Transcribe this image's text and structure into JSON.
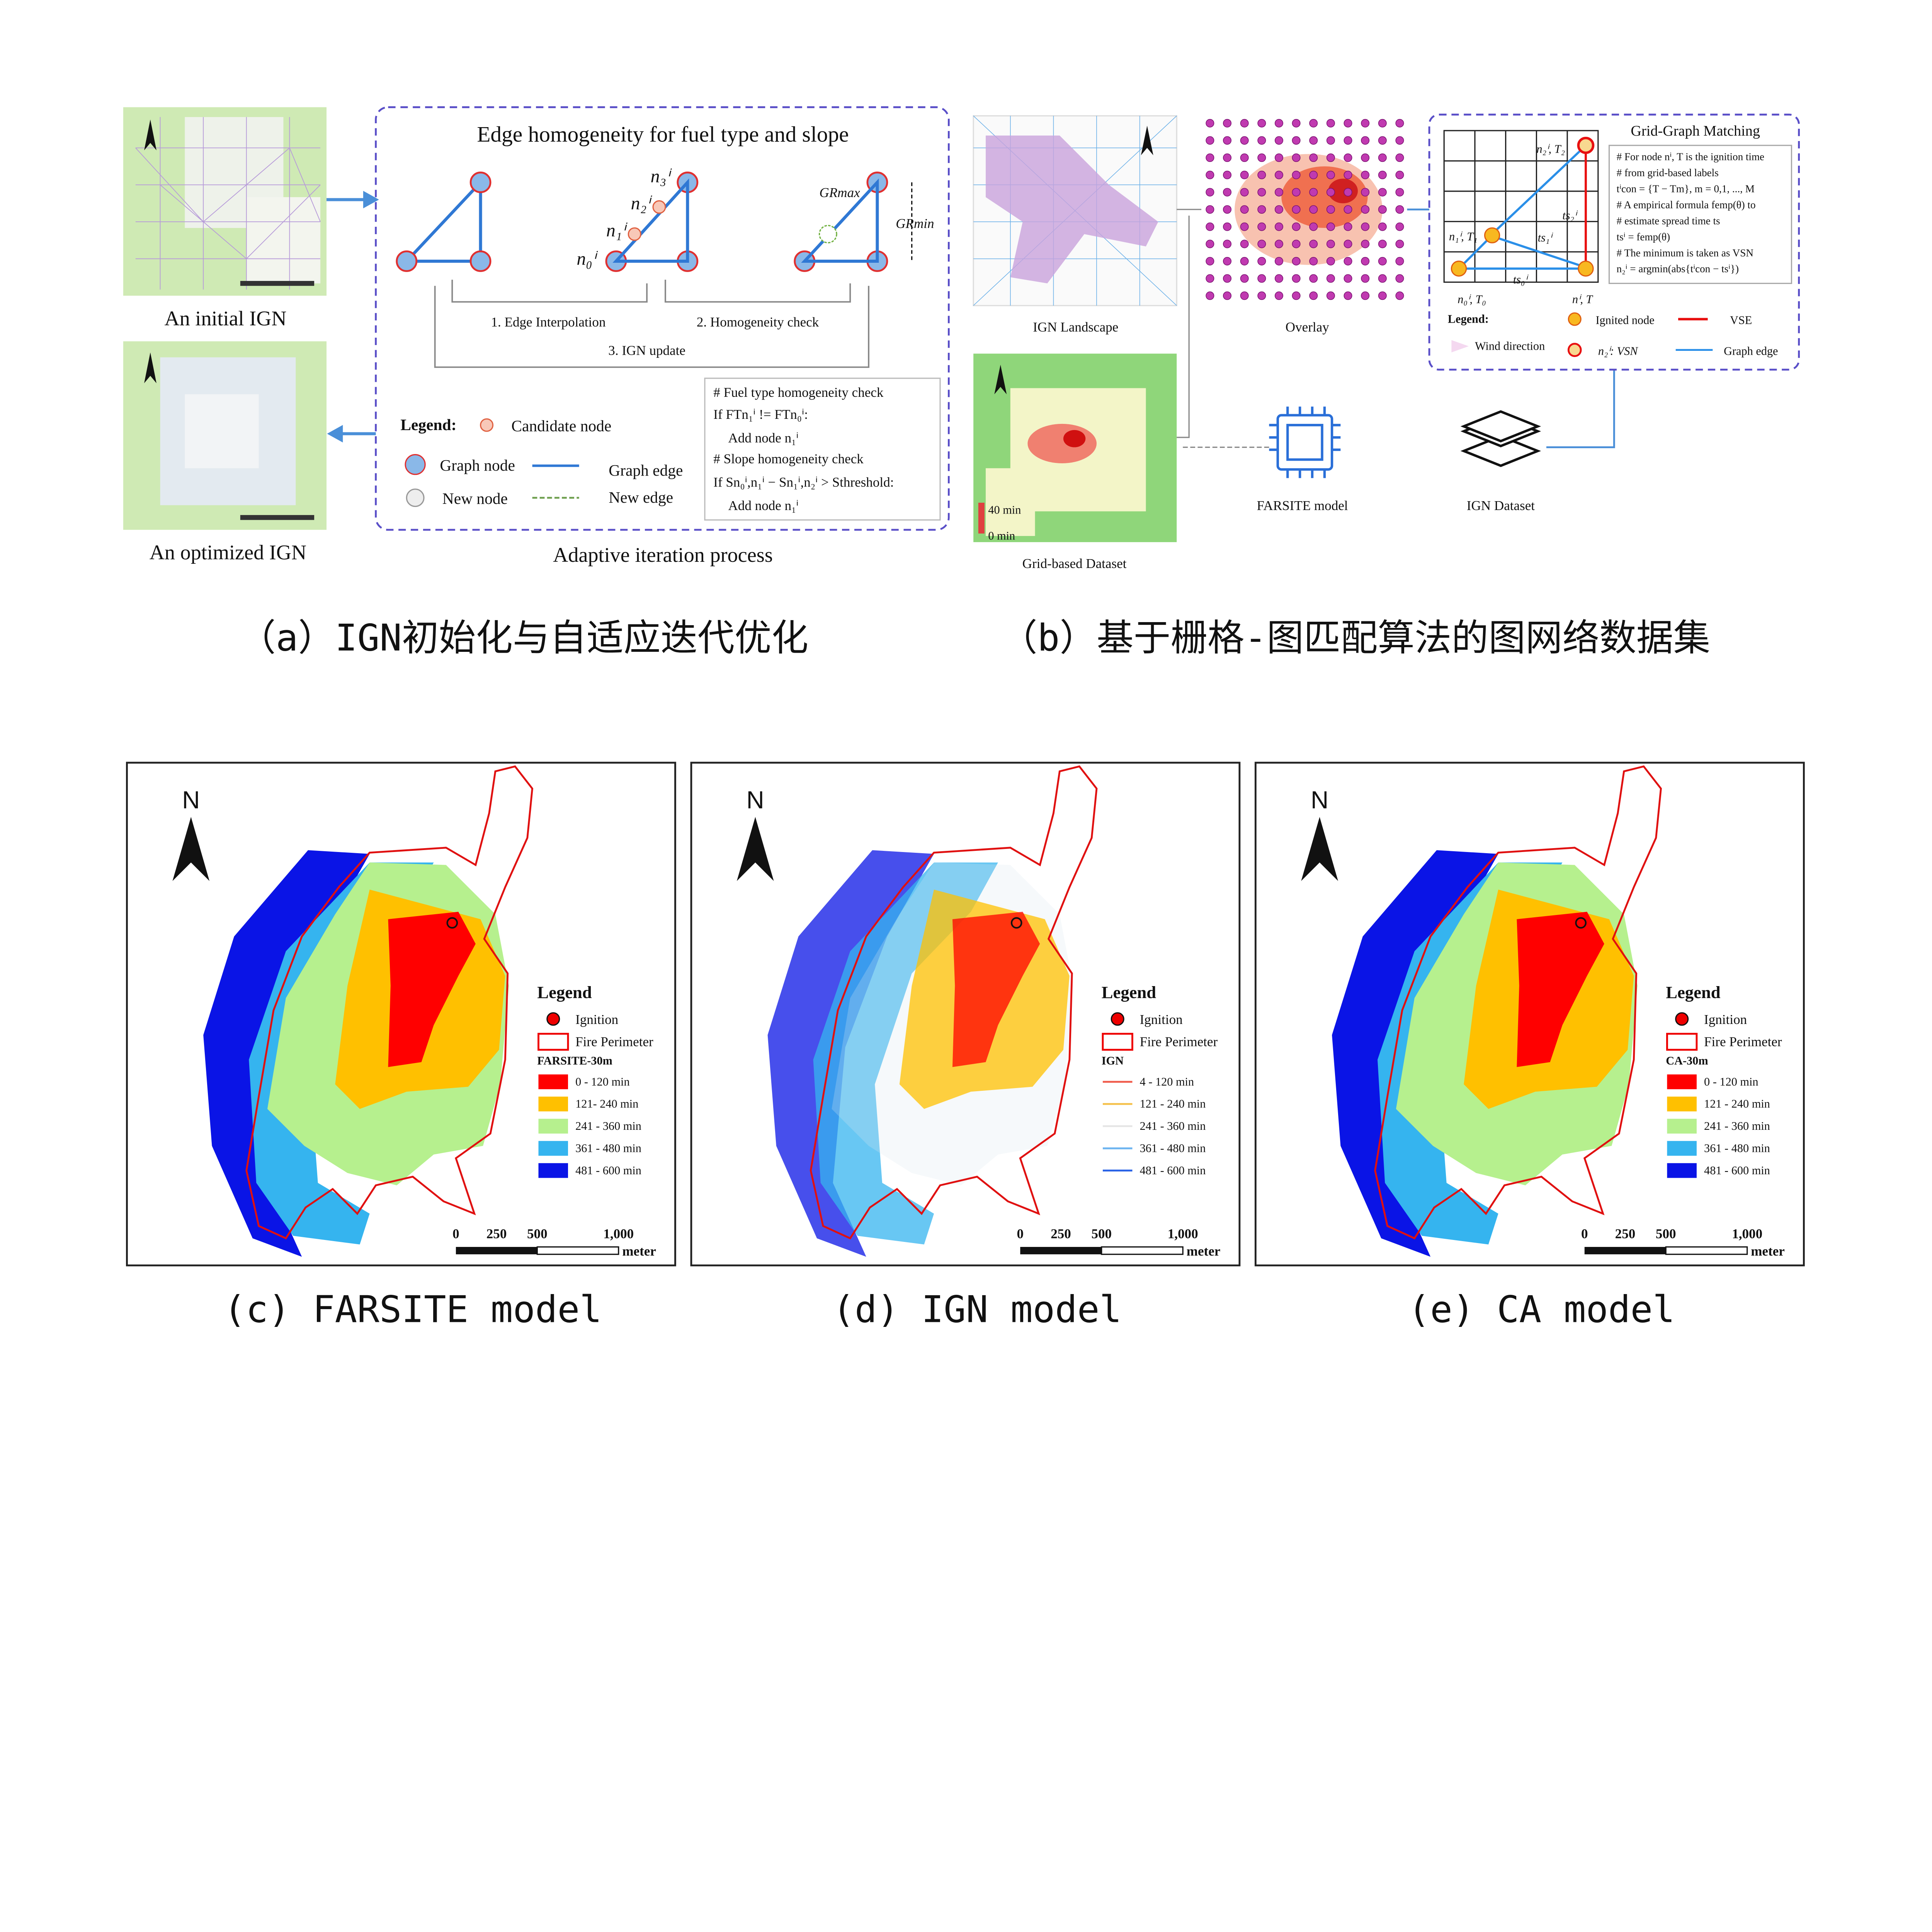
{
  "panel_a": {
    "initial_label": "An initial IGN",
    "optimized_label": "An optimized IGN",
    "box_title": "Edge homogeneity for fuel type and slope",
    "node_labels": {
      "n0": "n₀ⁱ",
      "n1": "n₁ⁱ",
      "n2": "n₂ⁱ",
      "n3": "n₃ⁱ",
      "gr_max": "GRmax",
      "gr_min": "GRmin"
    },
    "steps": [
      "1. Edge Interpolation",
      "2. Homogeneity check",
      "3. IGN update"
    ],
    "legend": {
      "title": "Legend:",
      "candidate_node": "Candidate node",
      "graph_node": "Graph node",
      "new_node": "New node",
      "graph_edge": "Graph edge",
      "new_edge": "New edge"
    },
    "code_lines": [
      "# Fuel type homogeneity check",
      "If FTn₁ⁱ != FTn₀ⁱ:",
      "Add node n₁ⁱ",
      "# Slope homogeneity check",
      "If Sn₀ⁱ,n₁ⁱ − Sn₁ⁱ,n₂ⁱ > Sthreshold:",
      "Add node n₁ⁱ"
    ],
    "footer": "Adaptive iteration process",
    "caption": "（a）IGN初始化与自适应迭代优化"
  },
  "panel_b": {
    "landscape_label": "IGN Landscape",
    "overlay_label": "Overlay",
    "grid_label": "Grid-based  Dataset",
    "grid_scale": [
      "40 min",
      "0 min"
    ],
    "farsite_label": "FARSITE model",
    "dataset_label": "IGN Dataset",
    "matching": {
      "title": "Grid-Graph Matching",
      "node_labels": [
        "n₂ⁱ, T₂",
        "n₁ⁱ, T₁",
        "n₀ⁱ, T₀",
        "nⁱ, T",
        "ts₂ⁱ",
        "ts₁ⁱ",
        "ts₀ⁱ"
      ],
      "code_lines": [
        "# For node nⁱ, T is the ignition time",
        "# from grid-based labels",
        "tⁱcon = {T − Tm}, m = 0,1, ..., M",
        "# A empirical formula femp(θ) to",
        "# estimate spread time ts",
        "tsⁱ = femp(θ)",
        "# The minimum is taken as VSN",
        "n₂ⁱ = argmin(abs{tⁱcon − tsⁱ})"
      ],
      "legend": {
        "title": "Legend:",
        "ignited_node": "Ignited node",
        "vse": "VSE",
        "wind": "Wind direction",
        "vsn": "n₂ⁱ: VSN",
        "graph_edge": "Graph edge"
      }
    },
    "caption": "（b）基于栅格-图匹配算法的图网络数据集"
  },
  "maps": [
    {
      "north": "N",
      "legend_title": "Legend",
      "ignition": "Ignition",
      "perimeter": "Fire Perimeter",
      "model": "FARSITE-30m",
      "legend_style": "swatch",
      "classes": [
        "0 - 120 min",
        "121- 240 min",
        "241 - 360 min",
        "361 - 480 min",
        "481 - 600 min"
      ],
      "scale_ticks": [
        "0",
        "250",
        "500",
        "1,000"
      ],
      "scale_unit": "meter",
      "caption": "(c)  FARSITE model"
    },
    {
      "north": "N",
      "legend_title": "Legend",
      "ignition": "Ignition",
      "perimeter": "Fire Perimeter",
      "model": "IGN",
      "legend_style": "line",
      "classes": [
        "4 - 120 min",
        "121 - 240 min",
        "241 - 360 min",
        "361 - 480 min",
        "481 - 600 min"
      ],
      "scale_ticks": [
        "0",
        "250",
        "500",
        "1,000"
      ],
      "scale_unit": "meter",
      "caption": "(d)  IGN model"
    },
    {
      "north": "N",
      "legend_title": "Legend",
      "ignition": "Ignition",
      "perimeter": "Fire Perimeter",
      "model": "CA-30m",
      "legend_style": "swatch",
      "classes": [
        "0 - 120 min",
        "121 - 240 min",
        "241 - 360 min",
        "361 - 480 min",
        "481 - 600 min"
      ],
      "scale_ticks": [
        "0",
        "250",
        "500",
        "1,000"
      ],
      "scale_unit": "meter",
      "caption": "(e)  CA model"
    }
  ],
  "colors": {
    "class_colors": [
      "#ff0000",
      "#ffc000",
      "#b6f08e",
      "#35b4ef",
      "#0a14e6"
    ],
    "line_colors": [
      "#f05a4a",
      "#f5c04a",
      "#e6e6e6",
      "#6cb4f0",
      "#2a63e6"
    ],
    "dashed_box": "#5a4fc8",
    "graph_blue": "#3a8de0"
  }
}
